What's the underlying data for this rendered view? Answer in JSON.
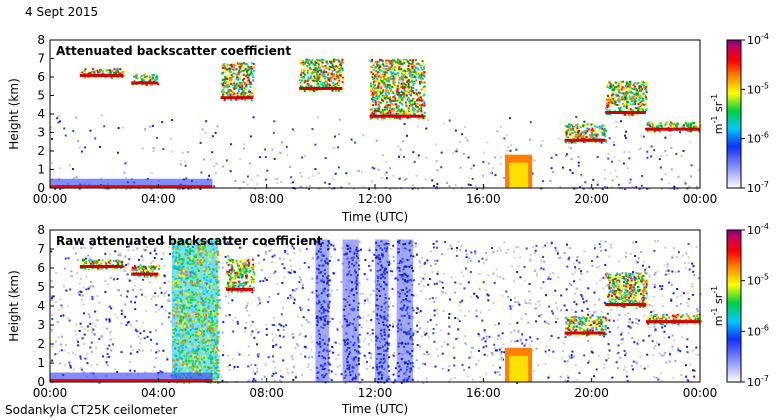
{
  "date": "4 Sept 2015",
  "footer": "Sodankyla CT25K ceilometer",
  "chart_data": [
    {
      "type": "heatmap",
      "title": "Attenuated backscatter coefficient",
      "xlabel": "Time (UTC)",
      "ylabel": "Height (km)",
      "xlim": [
        0,
        24
      ],
      "ylim": [
        0,
        8
      ],
      "x_ticks": [
        "00:00",
        "04:00",
        "08:00",
        "12:00",
        "16:00",
        "20:00",
        "00:00"
      ],
      "y_ticks": [
        "0",
        "1",
        "2",
        "3",
        "4",
        "5",
        "6",
        "7",
        "8"
      ],
      "colorbar": {
        "ticks": [
          "10",
          "10",
          "10",
          "10"
        ],
        "exponents": [
          "-4",
          "-5",
          "-6",
          "-7"
        ],
        "values": [
          0.0001,
          1e-05,
          1e-06,
          1e-07
        ],
        "label_base": "m",
        "label_exp1": "-1",
        "label_mid": " sr",
        "label_exp2": "-1"
      },
      "features": [
        {
          "kind": "cloud_layer",
          "t_start": 1.1,
          "t_end": 2.7,
          "h_base": 6.0,
          "h_top": 6.5
        },
        {
          "kind": "cloud_layer",
          "t_start": 3.0,
          "t_end": 4.0,
          "h_base": 5.6,
          "h_top": 6.2
        },
        {
          "kind": "cloud_layer",
          "t_start": 6.3,
          "t_end": 7.5,
          "h_base": 4.8,
          "h_top": 6.8
        },
        {
          "kind": "cloud_layer",
          "t_start": 9.2,
          "t_end": 10.8,
          "h_base": 5.3,
          "h_top": 7.0
        },
        {
          "kind": "cloud_layer",
          "t_start": 11.8,
          "t_end": 13.8,
          "h_base": 3.8,
          "h_top": 7.0
        },
        {
          "kind": "rain",
          "t_start": 16.8,
          "t_end": 17.8,
          "h_base": 0.0,
          "h_top": 1.8
        },
        {
          "kind": "cloud_layer",
          "t_start": 19.0,
          "t_end": 20.5,
          "h_base": 2.5,
          "h_top": 3.5
        },
        {
          "kind": "cloud_layer",
          "t_start": 20.5,
          "t_end": 22.0,
          "h_base": 4.0,
          "h_top": 5.8
        },
        {
          "kind": "cloud_layer",
          "t_start": 22.0,
          "t_end": 24.0,
          "h_base": 3.1,
          "h_top": 3.6
        },
        {
          "kind": "boundary_layer",
          "t_start": 0.0,
          "t_end": 6.0,
          "h_base": 0.0,
          "h_top": 0.5
        }
      ]
    },
    {
      "type": "heatmap",
      "title": "Raw attenuated backscatter coefficient",
      "xlabel": "Time (UTC)",
      "ylabel": "Height (km)",
      "xlim": [
        0,
        24
      ],
      "ylim": [
        0,
        8
      ],
      "x_ticks": [
        "00:00",
        "04:00",
        "08:00",
        "12:00",
        "16:00",
        "20:00",
        "00:00"
      ],
      "y_ticks": [
        "0",
        "1",
        "2",
        "3",
        "4",
        "5",
        "6",
        "7",
        "8"
      ],
      "colorbar": {
        "ticks": [
          "10",
          "10",
          "10",
          "10"
        ],
        "exponents": [
          "-4",
          "-5",
          "-6",
          "-7"
        ],
        "values": [
          0.0001,
          1e-05,
          1e-06,
          1e-07
        ],
        "label_base": "m",
        "label_exp1": "-1",
        "label_mid": " sr",
        "label_exp2": "-1"
      },
      "features": [
        {
          "kind": "cloud_layer",
          "t_start": 1.1,
          "t_end": 2.7,
          "h_base": 6.0,
          "h_top": 6.5
        },
        {
          "kind": "cloud_layer",
          "t_start": 3.0,
          "t_end": 4.0,
          "h_base": 5.6,
          "h_top": 6.2
        },
        {
          "kind": "noise_band",
          "t_start": 4.5,
          "t_end": 6.2,
          "h_base": 0.0,
          "h_top": 7.5
        },
        {
          "kind": "cloud_layer",
          "t_start": 6.5,
          "t_end": 7.5,
          "h_base": 4.8,
          "h_top": 6.5
        },
        {
          "kind": "noise_column",
          "t_start": 9.8,
          "t_end": 10.3,
          "h_base": 0.0,
          "h_top": 7.5
        },
        {
          "kind": "noise_column",
          "t_start": 10.8,
          "t_end": 11.4,
          "h_base": 0.0,
          "h_top": 7.5
        },
        {
          "kind": "noise_column",
          "t_start": 12.0,
          "t_end": 12.5,
          "h_base": 0.0,
          "h_top": 7.5
        },
        {
          "kind": "noise_column",
          "t_start": 12.8,
          "t_end": 13.4,
          "h_base": 0.0,
          "h_top": 7.5
        },
        {
          "kind": "rain",
          "t_start": 16.8,
          "t_end": 17.8,
          "h_base": 0.0,
          "h_top": 1.8
        },
        {
          "kind": "cloud_layer",
          "t_start": 19.0,
          "t_end": 20.5,
          "h_base": 2.5,
          "h_top": 3.5
        },
        {
          "kind": "cloud_layer",
          "t_start": 20.5,
          "t_end": 22.0,
          "h_base": 4.0,
          "h_top": 5.8
        },
        {
          "kind": "cloud_layer",
          "t_start": 22.0,
          "t_end": 24.0,
          "h_base": 3.1,
          "h_top": 3.6
        },
        {
          "kind": "boundary_layer",
          "t_start": 0.0,
          "t_end": 6.0,
          "h_base": 0.0,
          "h_top": 0.5
        }
      ]
    }
  ]
}
